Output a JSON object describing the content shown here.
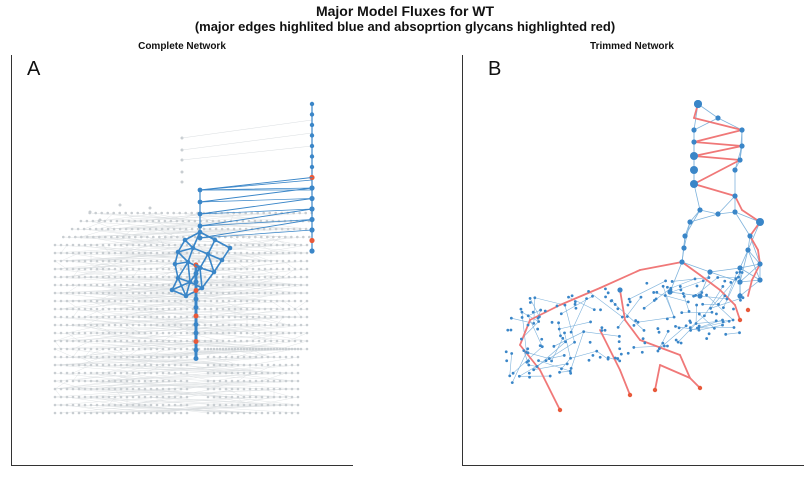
{
  "title": "Major Model Fluxes for WT",
  "subtitle": "(major edges highlited blue and absoprtion glycans highlighted red)",
  "panels": [
    {
      "label": "A",
      "title": "Complete Network"
    },
    {
      "label": "B",
      "title": "Trimmed Network"
    }
  ],
  "colors": {
    "major_edge": "#3a86c8",
    "absorption": "#e8593a",
    "absorption_edge": "#f07878",
    "minor_node": "#c8cdd1",
    "minor_edge": "#d9dde0",
    "trimmed_edge": "#7fb3dc"
  }
}
